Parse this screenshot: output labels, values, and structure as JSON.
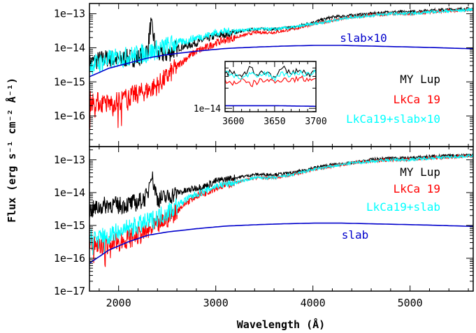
{
  "chart_data": [
    {
      "type": "line",
      "panel": "top",
      "xlabel": "",
      "ylabel": "",
      "xlim": [
        1700,
        5650
      ],
      "ylim_log10": [
        -16.9,
        -12.7
      ],
      "y_scale": "log",
      "y_ticks": [
        -16,
        -15,
        -14,
        -13
      ],
      "y_tick_labels": [
        "1e−16",
        "1e−15",
        "1e−14",
        "1e−13"
      ],
      "series": [
        {
          "name": "MY Lup",
          "color": "#000000",
          "x": [
            1700,
            1800,
            1900,
            2000,
            2100,
            2200,
            2300,
            2330,
            2400,
            2500,
            2600,
            2700,
            2800,
            2900,
            3000,
            3200,
            3400,
            3600,
            3800,
            4000,
            4200,
            4400,
            4600,
            4800,
            5000,
            5200,
            5400,
            5650
          ],
          "log10_y": [
            -14.45,
            -14.35,
            -14.3,
            -14.35,
            -14.3,
            -14.3,
            -14.05,
            -13.3,
            -14.2,
            -14.2,
            -14.0,
            -13.95,
            -13.85,
            -13.75,
            -13.65,
            -13.55,
            -13.45,
            -13.45,
            -13.4,
            -13.25,
            -13.1,
            -13.05,
            -13.0,
            -12.95,
            -12.95,
            -12.9,
            -12.88,
            -12.85
          ]
        },
        {
          "name": "LkCa 19",
          "color": "#ff0000",
          "x": [
            1700,
            1800,
            1900,
            2000,
            2100,
            2200,
            2300,
            2400,
            2500,
            2600,
            2700,
            2800,
            2900,
            3000,
            3200,
            3400,
            3600,
            3800,
            4000,
            4200,
            4400,
            4600,
            4800,
            5000,
            5200,
            5400,
            5650
          ],
          "log10_y": [
            -15.55,
            -15.6,
            -15.65,
            -15.55,
            -15.45,
            -15.35,
            -15.25,
            -15.1,
            -14.85,
            -14.55,
            -14.3,
            -14.1,
            -14.0,
            -13.85,
            -13.7,
            -13.55,
            -13.55,
            -13.45,
            -13.3,
            -13.2,
            -13.1,
            -13.05,
            -13.0,
            -13.0,
            -12.95,
            -12.92,
            -12.88
          ]
        },
        {
          "name": "LkCa19+slab×10",
          "color": "#00ffff",
          "x": [
            1700,
            1800,
            1900,
            2000,
            2100,
            2200,
            2300,
            2400,
            2500,
            2600,
            2700,
            2800,
            2900,
            3000,
            3200,
            3400,
            3600,
            3800,
            4000,
            4200,
            4400,
            4600,
            4800,
            5000,
            5200,
            5400,
            5650
          ],
          "log10_y": [
            -14.5,
            -14.45,
            -14.35,
            -14.3,
            -14.25,
            -14.2,
            -14.15,
            -14.05,
            -13.95,
            -13.85,
            -13.8,
            -13.7,
            -13.65,
            -13.55,
            -13.5,
            -13.45,
            -13.45,
            -13.4,
            -13.3,
            -13.2,
            -13.1,
            -13.05,
            -13.0,
            -13.0,
            -12.95,
            -12.92,
            -12.88
          ]
        },
        {
          "name": "slab×10",
          "color": "#0000cc",
          "x": [
            1700,
            1900,
            2100,
            2300,
            2500,
            2800,
            3100,
            3400,
            3700,
            4000,
            4300,
            4600,
            4900,
            5200,
            5650
          ],
          "log10_y": [
            -14.85,
            -14.6,
            -14.45,
            -14.3,
            -14.2,
            -14.1,
            -14.02,
            -13.98,
            -13.95,
            -13.93,
            -13.93,
            -13.95,
            -13.97,
            -13.99,
            -14.03
          ]
        }
      ],
      "legend": [
        "MY Lup",
        "LkCa 19",
        "LkCa19+slab×10"
      ],
      "annotation": "slab×10"
    },
    {
      "type": "line",
      "panel": "bottom",
      "xlabel": "Wavelength (Å)",
      "ylabel": "Flux (erg s⁻¹ cm⁻² Å⁻¹)",
      "xlim": [
        1700,
        5650
      ],
      "ylim_log10": [
        -17.0,
        -12.6
      ],
      "y_scale": "log",
      "x_ticks": [
        2000,
        3000,
        4000,
        5000
      ],
      "y_ticks": [
        -17,
        -16,
        -15,
        -14,
        -13
      ],
      "y_tick_labels": [
        "1e−17",
        "1e−16",
        "1e−15",
        "1e−14",
        "1e−13"
      ],
      "series": [
        {
          "name": "MY Lup",
          "color": "#000000",
          "x": [
            1700,
            1800,
            1900,
            2000,
            2100,
            2200,
            2300,
            2330,
            2400,
            2500,
            2600,
            2700,
            2800,
            2900,
            3000,
            3200,
            3400,
            3600,
            3800,
            4000,
            4200,
            4400,
            4600,
            4800,
            5000,
            5200,
            5400,
            5650
          ],
          "log10_y": [
            -14.55,
            -14.45,
            -14.35,
            -14.4,
            -14.35,
            -14.3,
            -14.1,
            -13.35,
            -14.2,
            -14.15,
            -14.0,
            -13.95,
            -13.85,
            -13.8,
            -13.65,
            -13.55,
            -13.45,
            -13.45,
            -13.4,
            -13.25,
            -13.15,
            -13.1,
            -13.0,
            -12.95,
            -12.95,
            -12.9,
            -12.88,
            -12.85
          ]
        },
        {
          "name": "LkCa 19",
          "color": "#ff0000",
          "x": [
            1700,
            1800,
            1900,
            2000,
            2100,
            2200,
            2300,
            2400,
            2500,
            2600,
            2700,
            2800,
            2900,
            3000,
            3200,
            3400,
            3600,
            3800,
            4000,
            4200,
            4400,
            4600,
            4800,
            5000,
            5200,
            5400,
            5650
          ],
          "log10_y": [
            -15.55,
            -15.6,
            -15.6,
            -15.5,
            -15.4,
            -15.3,
            -15.2,
            -15.0,
            -14.8,
            -14.55,
            -14.3,
            -14.1,
            -14.0,
            -13.85,
            -13.7,
            -13.55,
            -13.55,
            -13.45,
            -13.3,
            -13.2,
            -13.1,
            -13.05,
            -13.0,
            -13.0,
            -12.95,
            -12.92,
            -12.88
          ]
        },
        {
          "name": "LkCa19+slab",
          "color": "#00ffff",
          "x": [
            1700,
            1800,
            1900,
            2000,
            2100,
            2200,
            2300,
            2400,
            2500,
            2600,
            2700,
            2800,
            2900,
            3000,
            3200,
            3400,
            3600,
            3800,
            4000,
            4200,
            4400,
            4600,
            4800,
            5000,
            5200,
            5400,
            5650
          ],
          "log10_y": [
            -15.4,
            -15.35,
            -15.3,
            -15.2,
            -15.1,
            -15.0,
            -14.9,
            -14.75,
            -14.6,
            -14.4,
            -14.2,
            -14.05,
            -13.95,
            -13.8,
            -13.7,
            -13.55,
            -13.55,
            -13.45,
            -13.3,
            -13.2,
            -13.1,
            -13.05,
            -13.0,
            -13.0,
            -12.95,
            -12.92,
            -12.88
          ]
        },
        {
          "name": "slab",
          "color": "#0000cc",
          "x": [
            1700,
            1900,
            2100,
            2300,
            2500,
            2800,
            3100,
            3400,
            3700,
            4000,
            4300,
            4600,
            4900,
            5200,
            5650
          ],
          "log10_y": [
            -16.15,
            -15.75,
            -15.5,
            -15.3,
            -15.2,
            -15.1,
            -15.02,
            -14.98,
            -14.95,
            -14.93,
            -14.93,
            -14.95,
            -14.97,
            -14.99,
            -15.03
          ]
        }
      ],
      "legend": [
        "MY Lup",
        "LkCa 19",
        "LkCa19+slab"
      ],
      "annotation": "slab"
    },
    {
      "type": "line",
      "panel": "inset",
      "xlim": [
        3590,
        3700
      ],
      "ylim_log10": [
        -14.05,
        -13.3
      ],
      "y_scale": "log",
      "x_ticks": [
        3600,
        3650,
        3700
      ],
      "y_ticks": [
        -14
      ],
      "y_tick_labels": [
        "1e−14"
      ],
      "series": [
        {
          "name": "MY Lup",
          "color": "#000000",
          "x": [
            3590,
            3600,
            3610,
            3620,
            3630,
            3640,
            3650,
            3660,
            3670,
            3680,
            3690,
            3700
          ],
          "log10_y": [
            -13.5,
            -13.45,
            -13.55,
            -13.4,
            -13.5,
            -13.45,
            -13.55,
            -13.4,
            -13.48,
            -13.42,
            -13.5,
            -13.45
          ]
        },
        {
          "name": "LkCa 19",
          "color": "#ff0000",
          "x": [
            3590,
            3600,
            3610,
            3620,
            3630,
            3640,
            3650,
            3660,
            3670,
            3680,
            3690,
            3700
          ],
          "log10_y": [
            -13.6,
            -13.62,
            -13.58,
            -13.65,
            -13.6,
            -13.57,
            -13.62,
            -13.55,
            -13.58,
            -13.55,
            -13.57,
            -13.54
          ]
        },
        {
          "name": "LkCa19+slab×10",
          "color": "#00ffff",
          "x": [
            3590,
            3600,
            3610,
            3620,
            3630,
            3640,
            3650,
            3660,
            3670,
            3680,
            3690,
            3700
          ],
          "log10_y": [
            -13.45,
            -13.5,
            -13.55,
            -13.5,
            -13.52,
            -13.48,
            -13.55,
            -13.47,
            -13.5,
            -13.47,
            -13.49,
            -13.46
          ]
        },
        {
          "name": "slab×10",
          "color": "#0000cc",
          "x": [
            3590,
            3650,
            3700
          ],
          "log10_y": [
            -13.96,
            -13.96,
            -13.97
          ]
        }
      ]
    }
  ]
}
